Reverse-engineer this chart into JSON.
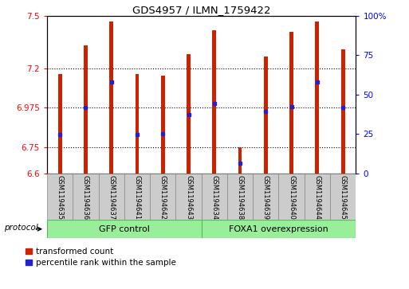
{
  "title": "GDS4957 / ILMN_1759422",
  "samples": [
    "GSM1194635",
    "GSM1194636",
    "GSM1194637",
    "GSM1194641",
    "GSM1194642",
    "GSM1194643",
    "GSM1194634",
    "GSM1194638",
    "GSM1194639",
    "GSM1194640",
    "GSM1194644",
    "GSM1194645"
  ],
  "bar_bottoms": [
    6.6,
    6.6,
    6.6,
    6.6,
    6.6,
    6.6,
    6.6,
    6.6,
    6.6,
    6.6,
    6.6,
    6.6
  ],
  "bar_tops": [
    7.17,
    7.33,
    7.47,
    7.17,
    7.16,
    7.28,
    7.42,
    6.75,
    7.27,
    7.41,
    7.47,
    7.31
  ],
  "percentile_values": [
    6.82,
    6.975,
    7.12,
    6.82,
    6.825,
    6.935,
    7.0,
    6.66,
    6.955,
    6.98,
    7.12,
    6.975
  ],
  "ylim_left": [
    6.6,
    7.5
  ],
  "ylim_right": [
    0,
    100
  ],
  "yticks_left": [
    6.6,
    6.75,
    6.975,
    7.2,
    7.5
  ],
  "yticks_right": [
    0,
    25,
    50,
    75,
    100
  ],
  "gridlines": [
    6.75,
    6.975,
    7.2
  ],
  "bar_color": "#cc2200",
  "percentile_color": "#2222cc",
  "group1_label": "GFP control",
  "group2_label": "FOXA1 overexpression",
  "group1_indices": [
    0,
    1,
    2,
    3,
    4,
    5
  ],
  "group2_indices": [
    6,
    7,
    8,
    9,
    10,
    11
  ],
  "group_color": "#99ee99",
  "group_edge_color": "#55bb55",
  "protocol_label": "protocol",
  "legend_items": [
    "transformed count",
    "percentile rank within the sample"
  ],
  "background_color": "#ffffff",
  "tick_area_color": "#cccccc",
  "bar_width": 0.15
}
